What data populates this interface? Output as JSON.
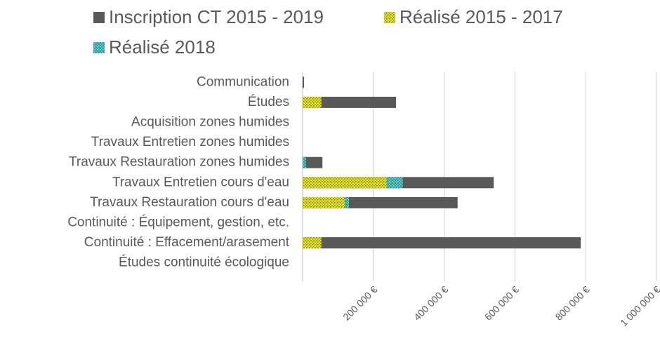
{
  "chart_data": {
    "type": "bar",
    "orientation": "horizontal",
    "categories": [
      "Communication",
      "Études",
      "Acquisition zones humides",
      "Travaux Entretien zones humides",
      "Travaux Restauration zones humides",
      "Travaux Entretien cours d'eau",
      "Travaux Restauration cours d'eau",
      "Continuité : Équipement, gestion, etc.",
      "Continuité : Effacement/arasement",
      "Études continuité écologique"
    ],
    "series": [
      {
        "name": "Inscription CT 2015 - 2019",
        "color": "#595959",
        "values": [
          4000,
          264000,
          0,
          0,
          56000,
          540000,
          438000,
          0,
          786000,
          0
        ]
      },
      {
        "name": "Réalisé 2015 - 2017",
        "color": "#e3e324",
        "values": [
          0,
          53000,
          0,
          0,
          0,
          238000,
          119000,
          0,
          53000,
          0
        ]
      },
      {
        "name": "Réalisé 2018",
        "color": "#2a9d9d",
        "values": [
          0,
          0,
          0,
          0,
          10000,
          45000,
          12000,
          0,
          0,
          0
        ]
      }
    ],
    "xlim": [
      0,
      1000000
    ],
    "xticks": [
      {
        "value": 200000,
        "label": "200 000 €"
      },
      {
        "value": 400000,
        "label": "400 000 €"
      },
      {
        "value": 600000,
        "label": "600 000 €"
      },
      {
        "value": 800000,
        "label": "800 000 €"
      },
      {
        "value": 1000000,
        "label": "1 000 000 €"
      }
    ],
    "grid": true,
    "legend": "top"
  }
}
